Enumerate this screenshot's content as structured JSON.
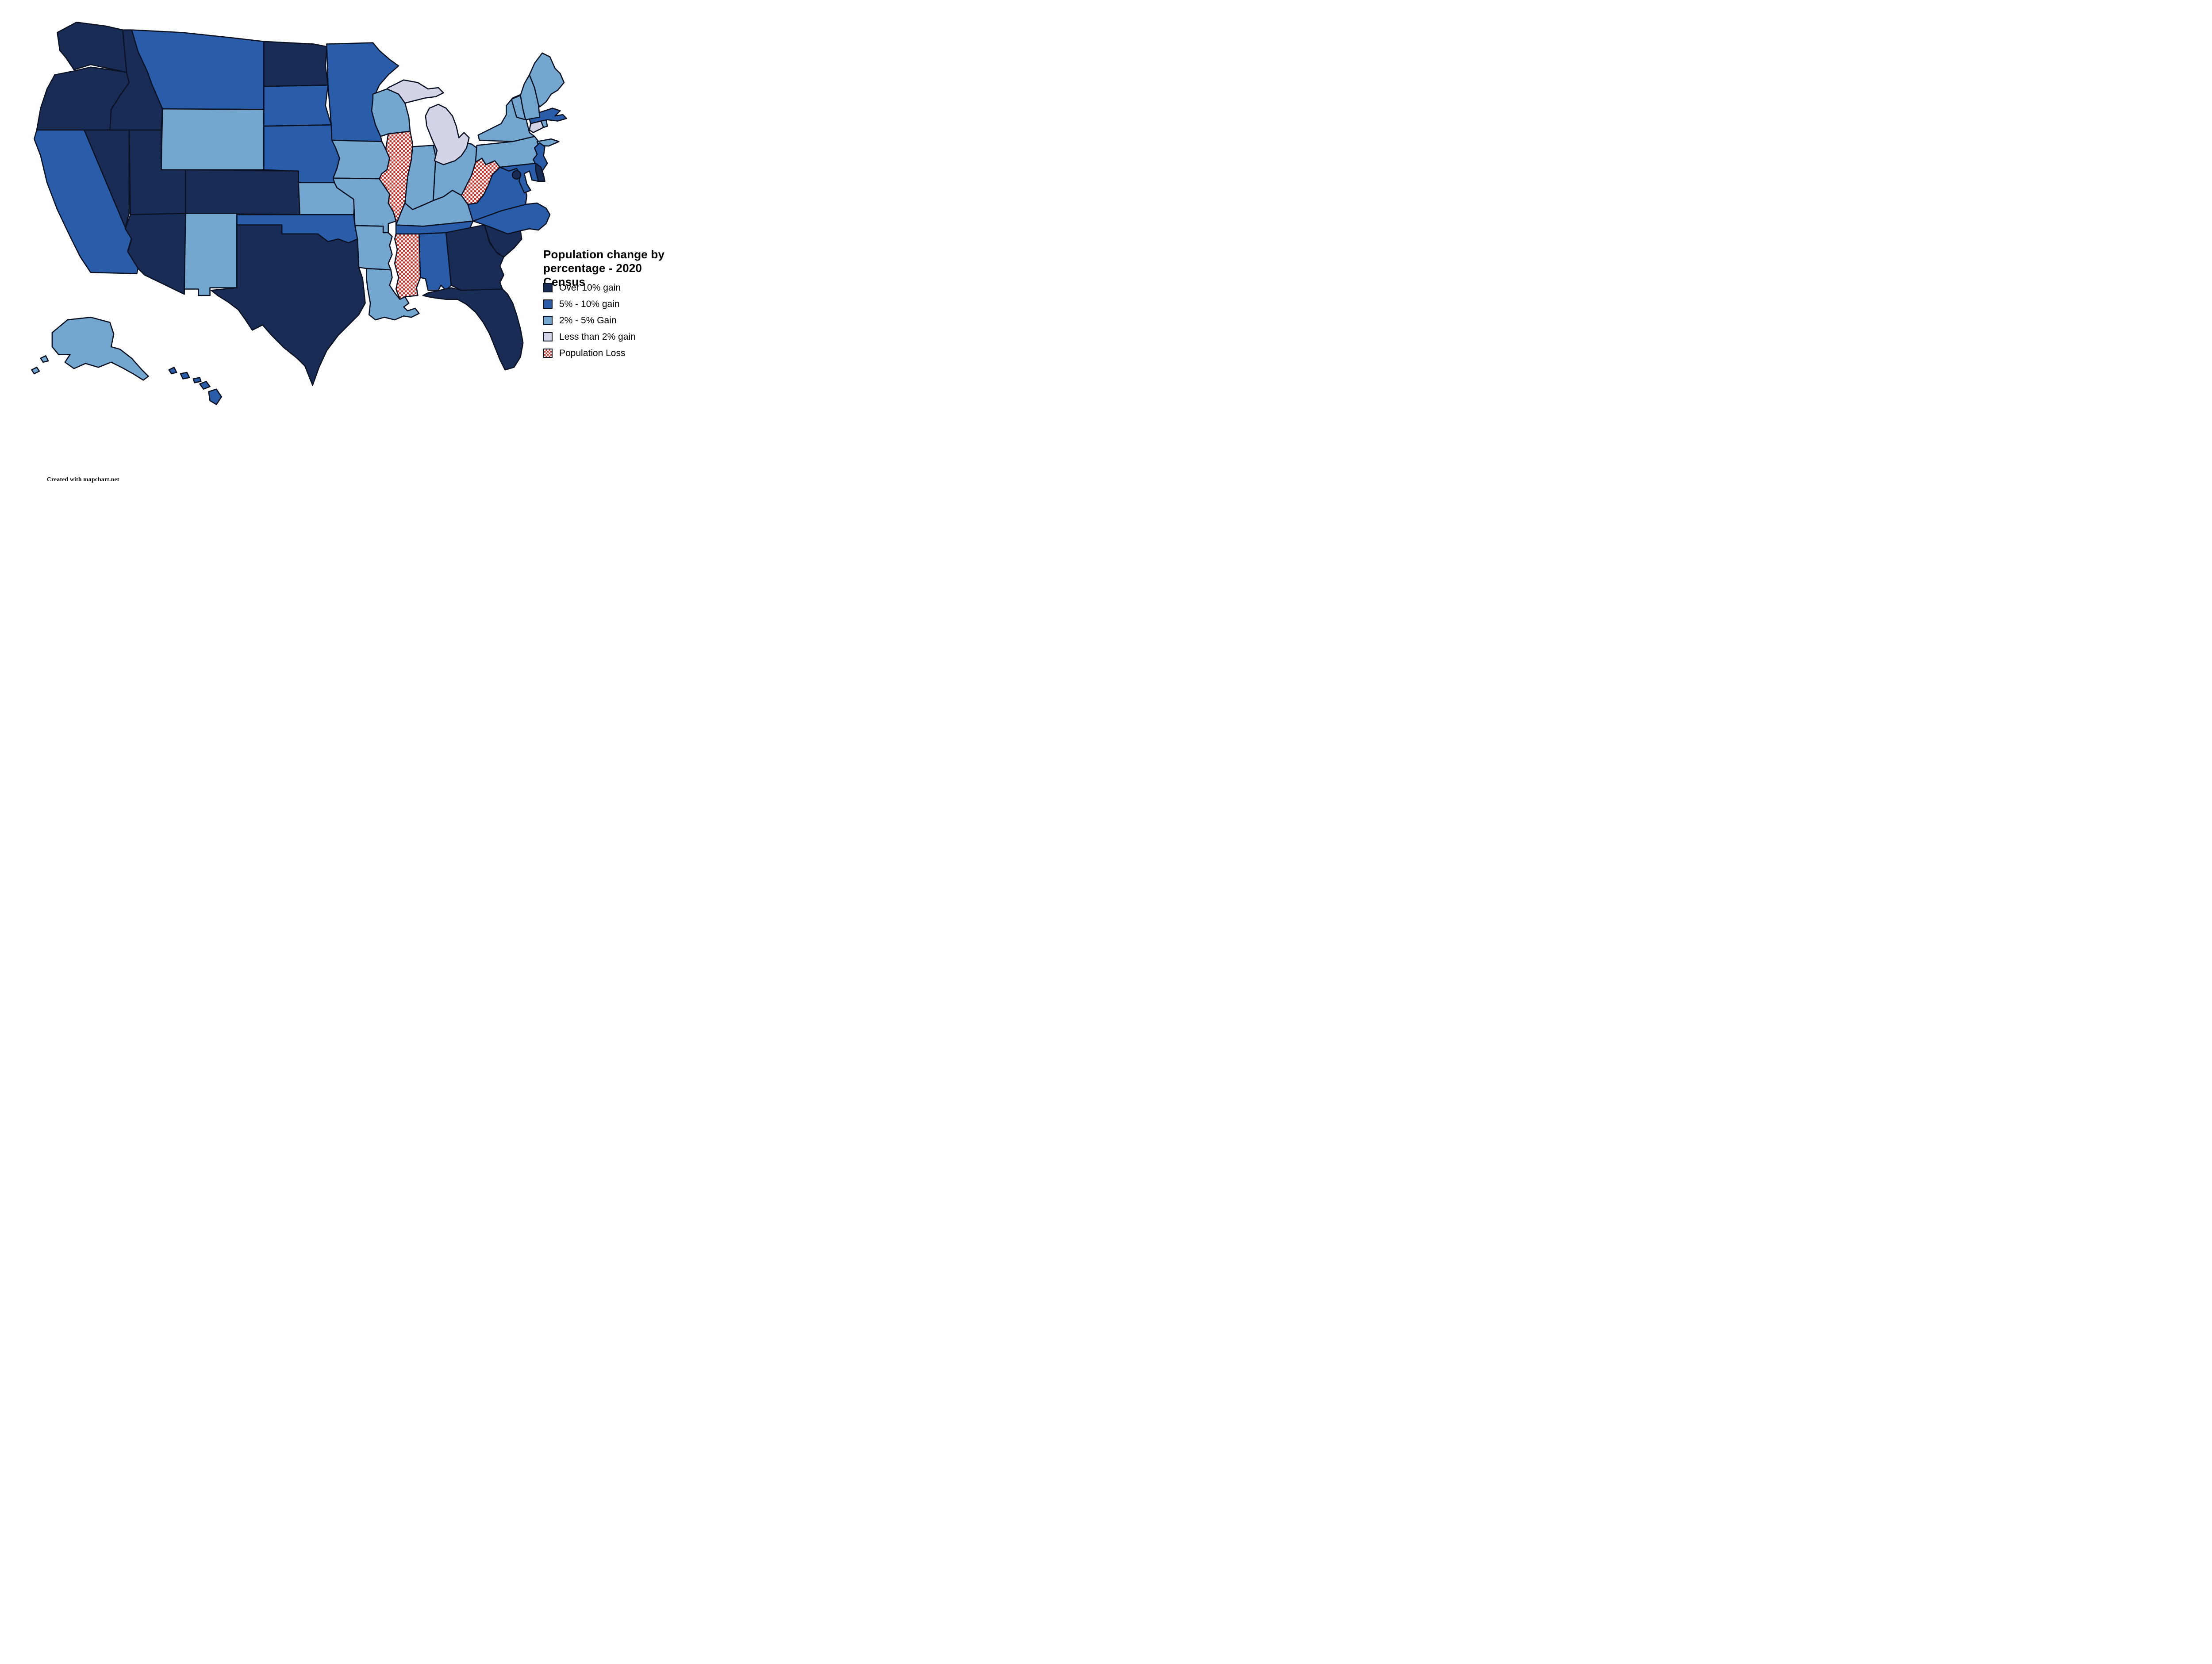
{
  "title": {
    "line1": "Population change by",
    "line2": "percentage - 2020 Census"
  },
  "attribution": "Created with mapchart.net",
  "colors": {
    "over10": "#182c56",
    "gain5to10": "#2a5da9",
    "gain2to5": "#74a7d0",
    "lessthan2": "#d4d4e8",
    "loss_red": "#c9332b",
    "border": "#0b1224",
    "background": "#ffffff"
  },
  "legend": {
    "items": [
      {
        "key": "over10",
        "label": "Over 10% gain"
      },
      {
        "key": "gain5to10",
        "label": "5% - 10% gain"
      },
      {
        "key": "gain2to5",
        "label": "2% - 5% Gain"
      },
      {
        "key": "lessthan2",
        "label": "Less than 2% gain"
      },
      {
        "key": "loss",
        "label": "Population Loss"
      }
    ]
  },
  "map": {
    "states": [
      {
        "id": "WA",
        "name": "Washington",
        "category": "over10"
      },
      {
        "id": "OR",
        "name": "Oregon",
        "category": "over10"
      },
      {
        "id": "CA",
        "name": "California",
        "category": "gain5to10"
      },
      {
        "id": "NV",
        "name": "Nevada",
        "category": "over10"
      },
      {
        "id": "ID",
        "name": "Idaho",
        "category": "over10"
      },
      {
        "id": "MT",
        "name": "Montana",
        "category": "gain5to10"
      },
      {
        "id": "WY",
        "name": "Wyoming",
        "category": "gain2to5"
      },
      {
        "id": "UT",
        "name": "Utah",
        "category": "over10"
      },
      {
        "id": "CO",
        "name": "Colorado",
        "category": "over10"
      },
      {
        "id": "AZ",
        "name": "Arizona",
        "category": "over10"
      },
      {
        "id": "NM",
        "name": "New Mexico",
        "category": "gain2to5"
      },
      {
        "id": "ND",
        "name": "North Dakota",
        "category": "over10"
      },
      {
        "id": "SD",
        "name": "South Dakota",
        "category": "gain5to10"
      },
      {
        "id": "NE",
        "name": "Nebraska",
        "category": "gain5to10"
      },
      {
        "id": "KS",
        "name": "Kansas",
        "category": "gain2to5"
      },
      {
        "id": "OK",
        "name": "Oklahoma",
        "category": "gain5to10"
      },
      {
        "id": "TX",
        "name": "Texas",
        "category": "over10"
      },
      {
        "id": "MN",
        "name": "Minnesota",
        "category": "gain5to10"
      },
      {
        "id": "IA",
        "name": "Iowa",
        "category": "gain2to5"
      },
      {
        "id": "MO",
        "name": "Missouri",
        "category": "gain2to5"
      },
      {
        "id": "AR",
        "name": "Arkansas",
        "category": "gain2to5"
      },
      {
        "id": "LA",
        "name": "Louisiana",
        "category": "gain2to5"
      },
      {
        "id": "WI",
        "name": "Wisconsin",
        "category": "gain2to5"
      },
      {
        "id": "IL",
        "name": "Illinois",
        "category": "loss"
      },
      {
        "id": "MS",
        "name": "Mississippi",
        "category": "loss"
      },
      {
        "id": "AL",
        "name": "Alabama",
        "category": "gain5to10"
      },
      {
        "id": "TN",
        "name": "Tennessee",
        "category": "gain5to10"
      },
      {
        "id": "KY",
        "name": "Kentucky",
        "category": "gain2to5"
      },
      {
        "id": "GA",
        "name": "Georgia",
        "category": "over10"
      },
      {
        "id": "FL",
        "name": "Florida",
        "category": "over10"
      },
      {
        "id": "SC",
        "name": "South Carolina",
        "category": "over10"
      },
      {
        "id": "NC",
        "name": "North Carolina",
        "category": "gain5to10"
      },
      {
        "id": "VA",
        "name": "Virginia",
        "category": "gain5to10"
      },
      {
        "id": "WV",
        "name": "West Virginia",
        "category": "loss"
      },
      {
        "id": "OH",
        "name": "Ohio",
        "category": "gain2to5"
      },
      {
        "id": "IN",
        "name": "Indiana",
        "category": "gain2to5"
      },
      {
        "id": "MI",
        "name": "Michigan",
        "category": "lessthan2"
      },
      {
        "id": "PA",
        "name": "Pennsylvania",
        "category": "gain2to5"
      },
      {
        "id": "NY",
        "name": "New York",
        "category": "gain2to5"
      },
      {
        "id": "NJ",
        "name": "New Jersey",
        "category": "gain5to10"
      },
      {
        "id": "DE",
        "name": "Delaware",
        "category": "over10"
      },
      {
        "id": "MD",
        "name": "Maryland",
        "category": "gain5to10"
      },
      {
        "id": "DC",
        "name": "District of Columbia",
        "category": "over10"
      },
      {
        "id": "CT",
        "name": "Connecticut",
        "category": "lessthan2"
      },
      {
        "id": "RI",
        "name": "Rhode Island",
        "category": "gain2to5"
      },
      {
        "id": "MA",
        "name": "Massachusetts",
        "category": "gain5to10"
      },
      {
        "id": "VT",
        "name": "Vermont",
        "category": "gain2to5"
      },
      {
        "id": "NH",
        "name": "New Hampshire",
        "category": "gain2to5"
      },
      {
        "id": "ME",
        "name": "Maine",
        "category": "gain2to5"
      },
      {
        "id": "AK",
        "name": "Alaska",
        "category": "gain2to5"
      },
      {
        "id": "HI",
        "name": "Hawaii",
        "category": "gain5to10"
      }
    ]
  }
}
